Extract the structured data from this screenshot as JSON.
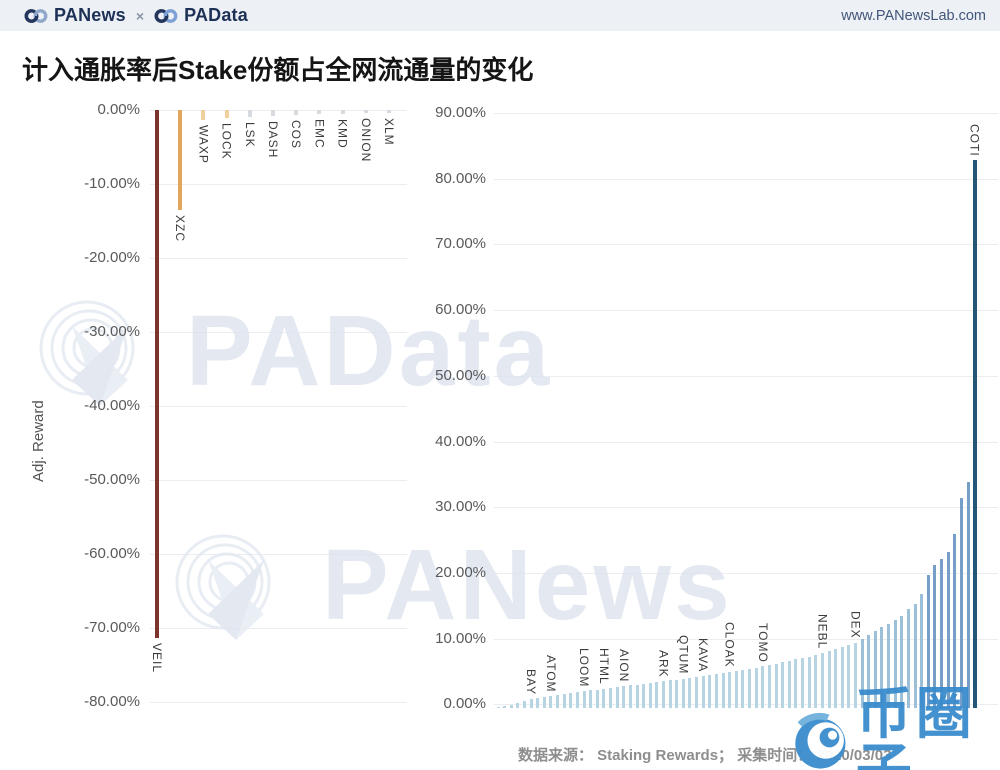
{
  "header": {
    "brand_left": "PANews",
    "separator": "×",
    "brand_right": "PAData",
    "url": "www.PANewsLab.com"
  },
  "title": "计入通胀率后Stake份额占全网流通量的变化",
  "watermarks": {
    "center_top": "PAData",
    "center_bottom": "PANews",
    "corner": "币圈子"
  },
  "footer": {
    "source": "数据来源： Staking Rewards； 采集时间： 2020/03/03"
  },
  "colors": {
    "accent_veil": "#7c352c",
    "accent_xzc": "#e0a65c",
    "stub_orange": "#f0cf9e",
    "stub_gray": "#d7dbe0",
    "bar_light": "#b7d4e3",
    "bar_mid": "#9cc0d7",
    "bar_steel": "#759fc7",
    "bar_coti": "#245677",
    "watermark_blue": "#3a8ccd",
    "brand_navy": "#1d3156",
    "grid": "#ebedf1"
  },
  "chart_data": [
    {
      "type": "bar",
      "panel": "left",
      "ylabel": "Adj. Reward",
      "ylim": [
        -85,
        0
      ],
      "grid": true,
      "yticks": [
        "0.00%",
        "-10.00%",
        "-20.00%",
        "-30.00%",
        "-40.00%",
        "-50.00%",
        "-60.00%",
        "-70.00%",
        "-80.00%"
      ],
      "bars": [
        {
          "label": "VEIL",
          "value": -71.5,
          "color": "#7c352c"
        },
        {
          "label": "XZC",
          "value": -13.5,
          "color": "#e0a65c"
        },
        {
          "label": "WAXP",
          "value": -1.4,
          "color": "#f0cf9e"
        },
        {
          "label": "LOCK",
          "value": -1.1,
          "color": "#f0cf9e"
        },
        {
          "label": "LSK",
          "value": -0.9,
          "color": "#d7dbe0"
        },
        {
          "label": "DASH",
          "value": -0.8,
          "color": "#d7dbe0"
        },
        {
          "label": "COS",
          "value": -0.7,
          "color": "#d7dbe0"
        },
        {
          "label": "EMC",
          "value": -0.6,
          "color": "#d7dbe0"
        },
        {
          "label": "KMD",
          "value": -0.5,
          "color": "#d7dbe0"
        },
        {
          "label": "ONION",
          "value": -0.45,
          "color": "#d7dbe0"
        },
        {
          "label": "XLM",
          "value": -0.4,
          "color": "#d7dbe0"
        }
      ]
    },
    {
      "type": "bar",
      "panel": "right",
      "ylabel": "",
      "ylim": [
        0,
        90
      ],
      "grid": true,
      "yticks": [
        "90.00%",
        "80.00%",
        "70.00%",
        "60.00%",
        "50.00%",
        "40.00%",
        "30.00%",
        "20.00%",
        "10.00%",
        "0.00%"
      ],
      "bars": [
        [
          "",
          0.2
        ],
        [
          "",
          0.35
        ],
        [
          "",
          0.5
        ],
        [
          "",
          0.7
        ],
        [
          "",
          1.0
        ],
        [
          "BAY",
          1.3
        ],
        [
          "",
          1.5
        ],
        [
          "",
          1.65
        ],
        [
          "ATOM",
          1.8
        ],
        [
          "",
          1.95
        ],
        [
          "",
          2.1
        ],
        [
          "",
          2.25
        ],
        [
          "",
          2.4
        ],
        [
          "LOOM",
          2.55
        ],
        [
          "",
          2.7
        ],
        [
          "",
          2.8
        ],
        [
          "HTML",
          2.95
        ],
        [
          "",
          3.1
        ],
        [
          "",
          3.2
        ],
        [
          "AION",
          3.35
        ],
        [
          "",
          3.45
        ],
        [
          "",
          3.55
        ],
        [
          "",
          3.65
        ],
        [
          "",
          3.75
        ],
        [
          "",
          3.9
        ],
        [
          "ARK",
          4.05
        ],
        [
          "",
          4.2
        ],
        [
          "",
          4.3
        ],
        [
          "QTUM",
          4.45
        ],
        [
          "",
          4.55
        ],
        [
          "",
          4.7
        ],
        [
          "KAVA",
          4.85
        ],
        [
          "",
          5.0
        ],
        [
          "",
          5.15
        ],
        [
          "",
          5.3
        ],
        [
          "CLOAK",
          5.45
        ],
        [
          "",
          5.6
        ],
        [
          "",
          5.75
        ],
        [
          "",
          5.95
        ],
        [
          "",
          6.1
        ],
        [
          "TOMO",
          6.3
        ],
        [
          "",
          6.5
        ],
        [
          "",
          6.7
        ],
        [
          "",
          6.9
        ],
        [
          "",
          7.1
        ],
        [
          "",
          7.35
        ],
        [
          "",
          7.6
        ],
        [
          "",
          7.8
        ],
        [
          "",
          8.05
        ],
        [
          "NEBL",
          8.3
        ],
        [
          "",
          8.6
        ],
        [
          "",
          8.9
        ],
        [
          "",
          9.2
        ],
        [
          "",
          9.55
        ],
        [
          "DEX",
          9.9
        ],
        [
          "",
          10.4
        ],
        [
          "",
          11.0
        ],
        [
          "",
          11.6
        ],
        [
          "",
          12.2
        ],
        [
          "",
          12.8
        ],
        [
          "",
          13.4
        ],
        [
          "",
          14.0
        ],
        [
          "",
          15.0
        ],
        [
          "",
          15.7
        ],
        [
          "",
          17.2
        ],
        [
          "",
          20.2
        ],
        [
          "",
          21.7
        ],
        [
          "",
          22.6
        ],
        [
          "",
          23.6
        ],
        [
          "",
          26.3
        ],
        [
          "",
          31.8
        ],
        [
          "",
          34.2
        ],
        [
          "COTI",
          83.0
        ]
      ]
    }
  ]
}
